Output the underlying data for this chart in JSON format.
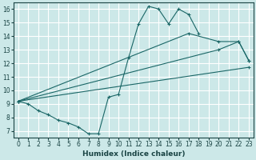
{
  "xlabel": "Humidex (Indice chaleur)",
  "bg_color": "#cce8e8",
  "grid_color": "#ffffff",
  "line_color": "#1a6666",
  "xlim": [
    -0.5,
    23.5
  ],
  "ylim": [
    6.5,
    16.5
  ],
  "xticks": [
    0,
    1,
    2,
    3,
    4,
    5,
    6,
    7,
    8,
    9,
    10,
    11,
    12,
    13,
    14,
    15,
    16,
    17,
    18,
    19,
    20,
    21,
    22,
    23
  ],
  "yticks": [
    7,
    8,
    9,
    10,
    11,
    12,
    13,
    14,
    15,
    16
  ],
  "lines": [
    {
      "x": [
        0,
        1,
        2,
        3,
        4,
        5,
        6,
        7,
        8,
        9,
        10,
        11,
        12,
        13,
        14,
        15,
        16,
        17,
        18
      ],
      "y": [
        9.2,
        9.0,
        8.5,
        8.2,
        7.8,
        7.6,
        7.3,
        6.8,
        6.8,
        9.5,
        9.7,
        12.4,
        14.9,
        16.2,
        16.0,
        14.9,
        16.0,
        15.6,
        14.2
      ]
    },
    {
      "x": [
        0,
        23
      ],
      "y": [
        9.2,
        11.7
      ]
    },
    {
      "x": [
        0,
        20,
        22,
        23
      ],
      "y": [
        9.2,
        13.0,
        13.6,
        12.2
      ]
    },
    {
      "x": [
        0,
        17,
        20,
        22,
        23
      ],
      "y": [
        9.2,
        14.2,
        13.6,
        13.6,
        12.2
      ]
    }
  ]
}
